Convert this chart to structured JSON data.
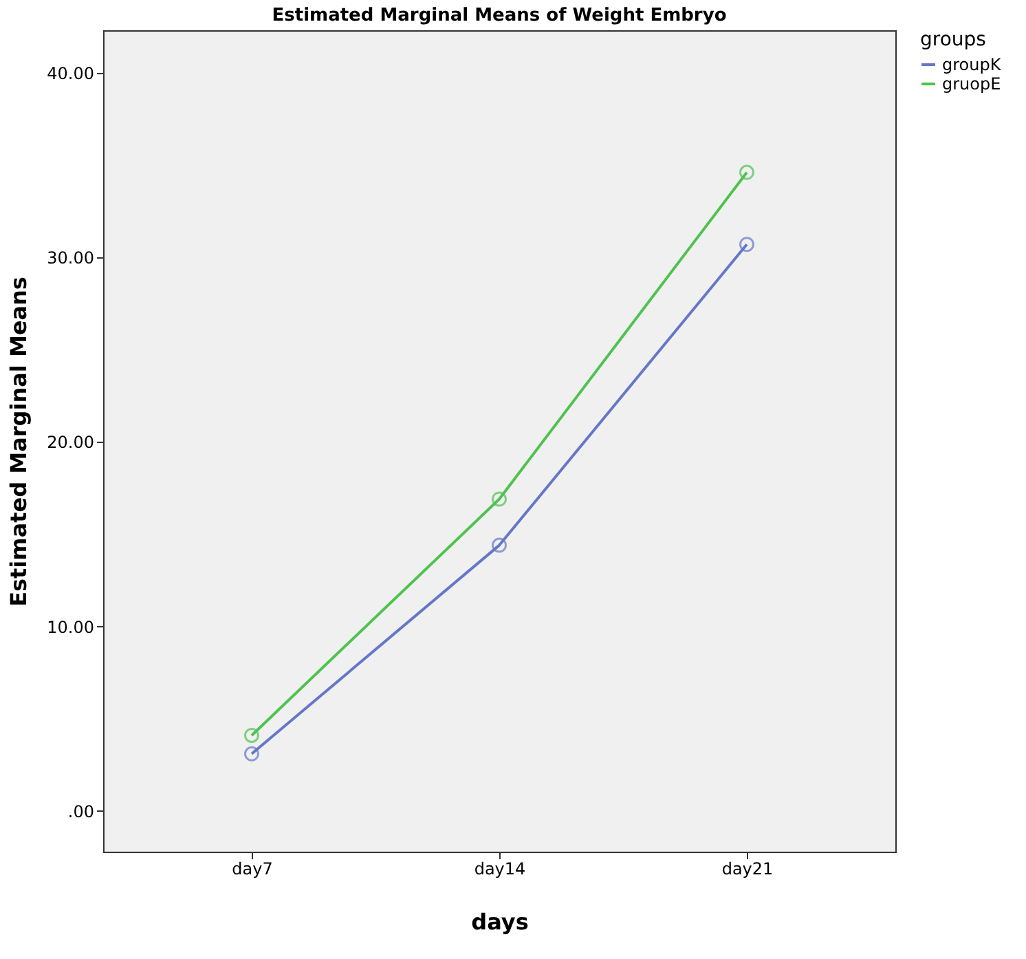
{
  "chart_data": {
    "type": "line",
    "title": "Estimated Marginal Means of Weight Embryo",
    "xlabel": "days",
    "ylabel": "Estimated Marginal Means",
    "legend_title": "groups",
    "categories": [
      "day7",
      "day14",
      "day21"
    ],
    "series": [
      {
        "name": "groupK",
        "color": "#6577c8",
        "values": [
          3.1,
          14.4,
          30.7
        ]
      },
      {
        "name": "gruopE",
        "color": "#4fc24f",
        "values": [
          4.1,
          16.9,
          34.6
        ]
      }
    ],
    "ylim": [
      -2.2,
      42.3
    ],
    "yticks": [
      {
        "value": 0,
        "label": ".00"
      },
      {
        "value": 10,
        "label": "10.00"
      },
      {
        "value": 20,
        "label": "20.00"
      },
      {
        "value": 30,
        "label": "30.00"
      },
      {
        "value": 40,
        "label": "40.00"
      }
    ],
    "grid": false,
    "legend": "top right",
    "marker": "circle",
    "line_style": "solid"
  }
}
